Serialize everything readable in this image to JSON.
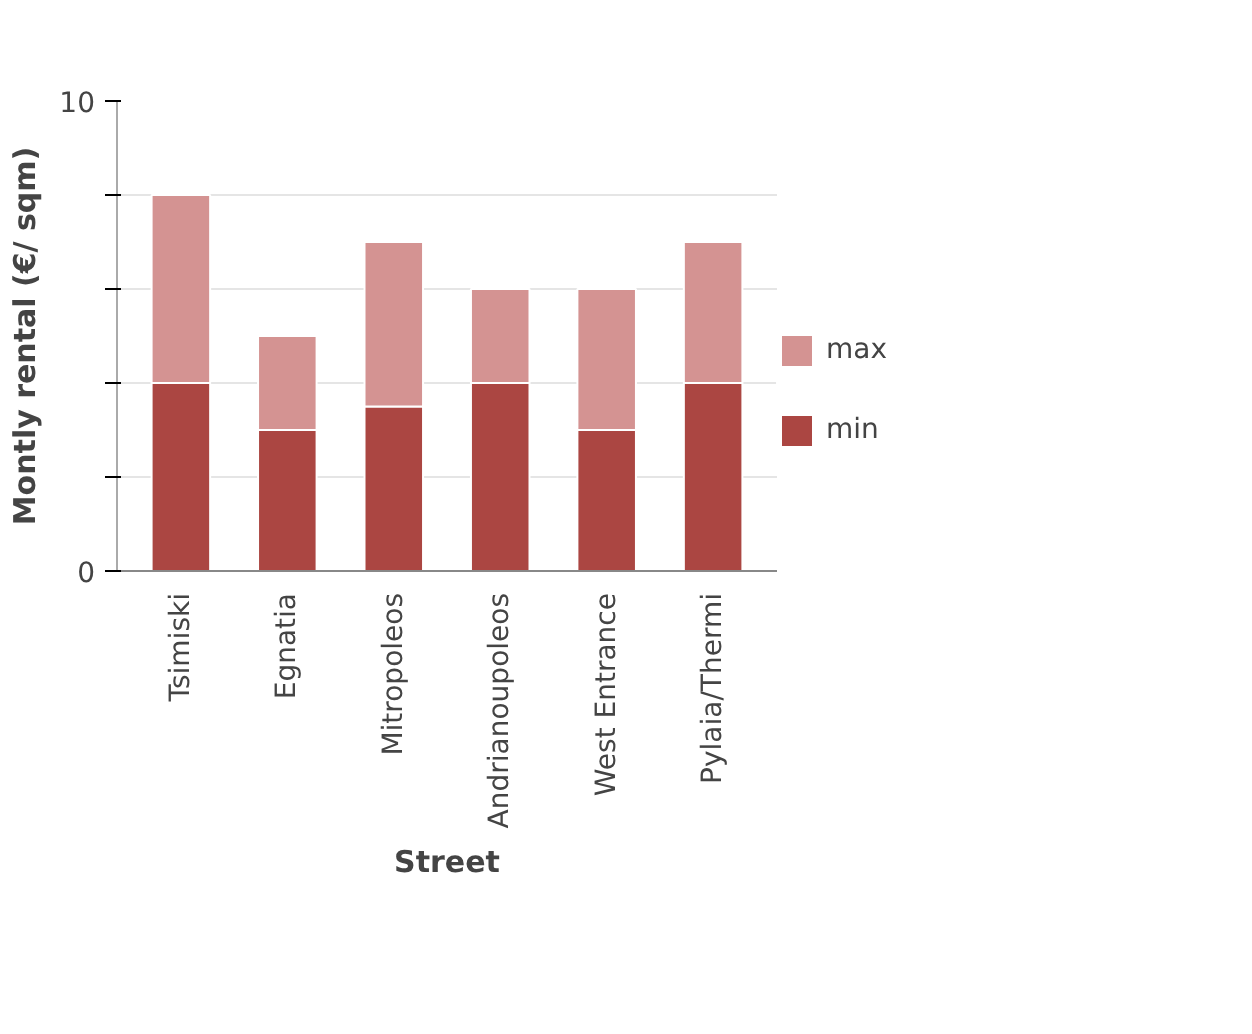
{
  "chart_data": {
    "type": "bar",
    "stacked": true,
    "xlabel": "Street",
    "ylabel": "Montly rental (€/ sqm)",
    "categories": [
      "Tsimiski",
      "Egnatia",
      "Mitropoleos",
      "Andrianoupoleos",
      "West Entrance",
      "Pylaia/Thermi"
    ],
    "series": [
      {
        "name": "min",
        "color": "#ab4642",
        "values": [
          4,
          3,
          3.5,
          4,
          3,
          4
        ]
      },
      {
        "name": "max",
        "color": "#d49392",
        "values": [
          4,
          2,
          3.5,
          2,
          3,
          3
        ]
      }
    ],
    "ylim": [
      0,
      10
    ],
    "yticks": [
      0,
      {
        "value": 2,
        "label": null
      },
      {
        "value": 4,
        "label": null
      },
      {
        "value": 6,
        "label": null
      },
      {
        "value": 8,
        "label": null
      },
      10
    ],
    "grid": "y",
    "legend": "right"
  }
}
